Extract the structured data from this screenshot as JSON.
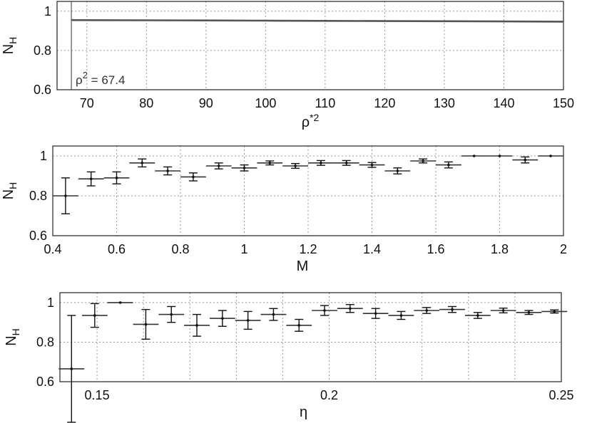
{
  "chart_data": [
    {
      "type": "line",
      "xlim": [
        65,
        150
      ],
      "ylim": [
        0.6,
        1.05
      ],
      "xticks": [
        "70",
        "80",
        "90",
        "100",
        "110",
        "120",
        "130",
        "140",
        "150"
      ],
      "yticks": [
        "0.6",
        "0.8",
        "1"
      ],
      "xlabel": "ρ*2",
      "ylabel": "NH",
      "grid": true,
      "threshold_x": 67.4,
      "annotation": "ρ2 = 67.4",
      "series": [
        {
          "x": [
            67.4,
            80,
            90,
            100,
            110,
            120,
            130,
            140,
            150
          ],
          "y": [
            0.955,
            0.954,
            0.953,
            0.952,
            0.951,
            0.95,
            0.949,
            0.948,
            0.947
          ]
        }
      ]
    },
    {
      "type": "scatter",
      "xlim": [
        0.4,
        2
      ],
      "ylim": [
        0.6,
        1.05
      ],
      "xticks": [
        "0.4",
        "0.6",
        "0.8",
        "1",
        "1.2",
        "1.4",
        "1.6",
        "1.8",
        "2"
      ],
      "yticks": [
        "0.6",
        "0.8",
        "1"
      ],
      "xlabel": "M",
      "ylabel": "NH",
      "grid": true,
      "bin_width": 0.08,
      "points": [
        {
          "x": 0.44,
          "y": 0.8,
          "err": 0.09
        },
        {
          "x": 0.52,
          "y": 0.885,
          "err": 0.035
        },
        {
          "x": 0.6,
          "y": 0.89,
          "err": 0.03
        },
        {
          "x": 0.68,
          "y": 0.965,
          "err": 0.02
        },
        {
          "x": 0.76,
          "y": 0.925,
          "err": 0.02
        },
        {
          "x": 0.84,
          "y": 0.895,
          "err": 0.02
        },
        {
          "x": 0.92,
          "y": 0.95,
          "err": 0.015
        },
        {
          "x": 1.0,
          "y": 0.94,
          "err": 0.015
        },
        {
          "x": 1.08,
          "y": 0.965,
          "err": 0.01
        },
        {
          "x": 1.16,
          "y": 0.95,
          "err": 0.012
        },
        {
          "x": 1.24,
          "y": 0.965,
          "err": 0.012
        },
        {
          "x": 1.32,
          "y": 0.965,
          "err": 0.012
        },
        {
          "x": 1.4,
          "y": 0.955,
          "err": 0.012
        },
        {
          "x": 1.48,
          "y": 0.925,
          "err": 0.015
        },
        {
          "x": 1.56,
          "y": 0.975,
          "err": 0.01
        },
        {
          "x": 1.64,
          "y": 0.955,
          "err": 0.015
        },
        {
          "x": 1.72,
          "y": 1.0,
          "err": 0.0
        },
        {
          "x": 1.8,
          "y": 1.0,
          "err": 0.0
        },
        {
          "x": 1.88,
          "y": 0.98,
          "err": 0.015
        },
        {
          "x": 1.96,
          "y": 1.0,
          "err": 0.0
        }
      ]
    },
    {
      "type": "scatter",
      "xlim": [
        0.142,
        0.25
      ],
      "ylim": [
        0.6,
        1.05
      ],
      "xticks": [
        "0.15",
        "0.2",
        "0.25"
      ],
      "xtick_values": [
        0.15,
        0.2,
        0.25
      ],
      "minor_grid_x": [
        0.16,
        0.17,
        0.18,
        0.19,
        0.21,
        0.22,
        0.23,
        0.24
      ],
      "yticks": [
        "0.6",
        "0.8",
        "1"
      ],
      "xlabel": "η",
      "ylabel": "NH",
      "grid": true,
      "bin_width": 0.0055,
      "points": [
        {
          "x": 0.1445,
          "y": 0.665,
          "err": 0.27
        },
        {
          "x": 0.1495,
          "y": 0.935,
          "err": 0.06
        },
        {
          "x": 0.155,
          "y": 1.0,
          "err": 0.0
        },
        {
          "x": 0.1605,
          "y": 0.89,
          "err": 0.075
        },
        {
          "x": 0.166,
          "y": 0.94,
          "err": 0.04
        },
        {
          "x": 0.1715,
          "y": 0.885,
          "err": 0.055
        },
        {
          "x": 0.177,
          "y": 0.92,
          "err": 0.04
        },
        {
          "x": 0.1825,
          "y": 0.91,
          "err": 0.045
        },
        {
          "x": 0.188,
          "y": 0.94,
          "err": 0.03
        },
        {
          "x": 0.1935,
          "y": 0.885,
          "err": 0.03
        },
        {
          "x": 0.199,
          "y": 0.96,
          "err": 0.025
        },
        {
          "x": 0.2045,
          "y": 0.97,
          "err": 0.02
        },
        {
          "x": 0.21,
          "y": 0.945,
          "err": 0.025
        },
        {
          "x": 0.2155,
          "y": 0.935,
          "err": 0.02
        },
        {
          "x": 0.221,
          "y": 0.96,
          "err": 0.015
        },
        {
          "x": 0.2265,
          "y": 0.965,
          "err": 0.015
        },
        {
          "x": 0.232,
          "y": 0.935,
          "err": 0.015
        },
        {
          "x": 0.2375,
          "y": 0.96,
          "err": 0.012
        },
        {
          "x": 0.243,
          "y": 0.95,
          "err": 0.01
        },
        {
          "x": 0.2485,
          "y": 0.955,
          "err": 0.008
        }
      ]
    }
  ]
}
